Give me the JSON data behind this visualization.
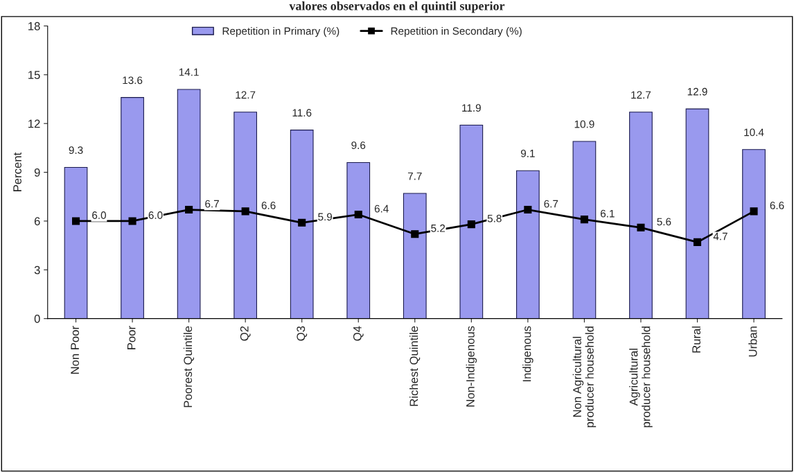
{
  "chart_data": {
    "type": "bar",
    "title": "valores observados en el quintil superior",
    "ylabel": "Percent",
    "categories": [
      "Non Poor",
      "Poor",
      "Poorest Quintile",
      "Q2",
      "Q3",
      "Q4",
      "Richest Quintile",
      "Non-Indigenous",
      "Indigenous",
      "Non Agricultural\nproducer household",
      "Agricultural\nproducer household",
      "Rural",
      "Urban"
    ],
    "series": [
      {
        "name": "Repetition in Primary (%)",
        "color": "#9999ee",
        "values": [
          9.3,
          13.6,
          14.1,
          12.7,
          11.6,
          9.6,
          7.7,
          11.9,
          9.1,
          10.9,
          12.7,
          12.9,
          10.4
        ],
        "value_labels": [
          "9.3",
          "13.6",
          "14.1",
          "12.7",
          "11.6",
          "9.6",
          "7.7",
          "11.9",
          "9.1",
          "10.9",
          "12.7",
          "12.9",
          "10.4"
        ]
      },
      {
        "name": "Repetition in Secondary (%)",
        "type": "line",
        "color": "#000000",
        "marker": "square",
        "values": [
          6.0,
          6.0,
          6.7,
          6.6,
          5.9,
          6.4,
          5.2,
          5.8,
          6.7,
          6.1,
          5.6,
          4.7,
          6.6
        ],
        "value_labels": [
          "6.0",
          "6.0",
          "6.7",
          "6.6",
          "5.9",
          "6.4",
          "5.2",
          "5.8",
          "6.7",
          "6.1",
          "5.6",
          "4.7",
          "6.6"
        ]
      }
    ],
    "ylim": [
      0,
      18
    ],
    "yticks": [
      0,
      3,
      6,
      9,
      12,
      15,
      18
    ],
    "grid": false,
    "legend": "top"
  }
}
